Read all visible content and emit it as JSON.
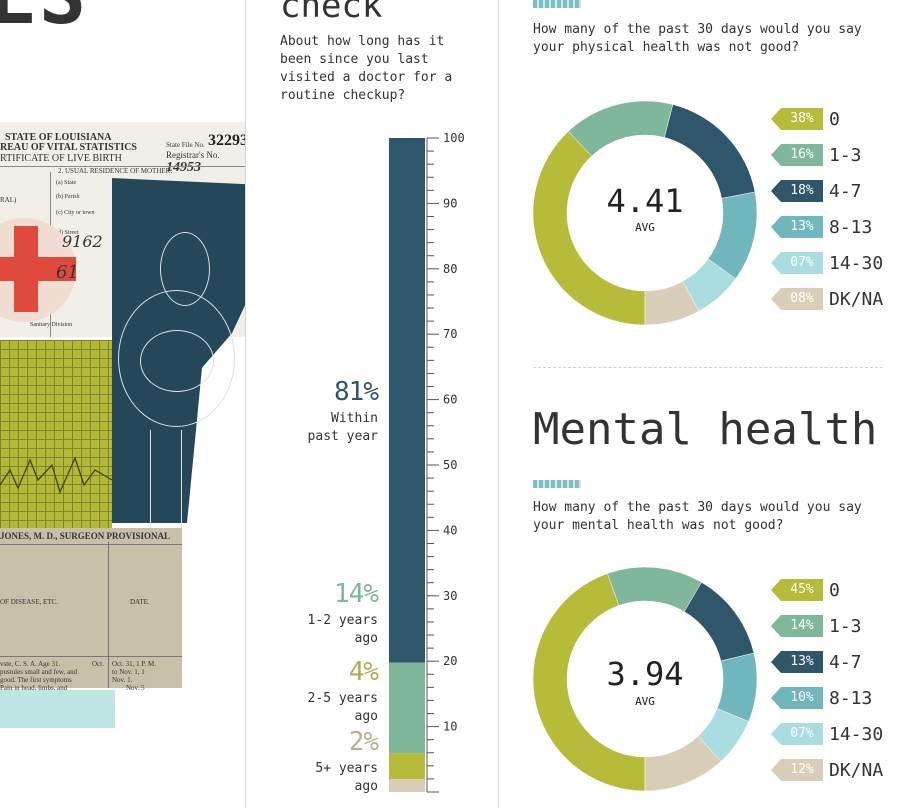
{
  "collage": {
    "big_letters": "ES",
    "state_line": "STATE OF LOUISIANA",
    "bureau_line": "REAU OF VITAL STATISTICS",
    "cert_line": "RTIFICATE OF LIVE BIRTH",
    "state_file_label": "State File No.",
    "state_file_no": "32293",
    "registrar_label": "Registrar's No.",
    "registrar_no": "14953",
    "residence_label": "2. USUAL RESIDENCE OF MOTHER:",
    "state_lbl": "(a) State",
    "parish_lbl": "(b) Parish",
    "city_lbl": "(c) City or town",
    "street_lbl": "(d) Street",
    "rural_lbl": "RAL)",
    "sanitary_lbl": "Sanitary Division",
    "hand_1": "9162",
    "hand_2": "61",
    "surgeon_line": "JONES, M. D., SURGEON PROVISIONAL",
    "disease_lbl": "OF DISEASE, ETC.",
    "date_lbl": "DATE.",
    "note_1": "vste, C. S. A. Age 31.",
    "note_2": "pustules small and few, and",
    "note_3": "good. The first symptoms",
    "note_4": "Pain in head, limbs, and",
    "date_1": "Oct.",
    "date_2": "Oct. 31, 1 P. M.",
    "date_3": "to Nov. 1, 1",
    "date_4": "Nov. 1.",
    "date_5": "Nov. 5"
  },
  "checkup": {
    "heading": "check",
    "question": "About how long has it been since you last visited a doctor for a routine checkup?",
    "segments": [
      {
        "pct": "81%",
        "label": "Within past year",
        "value": 81,
        "color": "#2f566b"
      },
      {
        "pct": "14%",
        "label": "1-2 years ago",
        "value": 14,
        "color": "#7fb79a"
      },
      {
        "pct": "4%",
        "label": "2-5 years ago",
        "value": 4,
        "color": "#b6bb3a"
      },
      {
        "pct": "2%",
        "label": "5+ years ago",
        "value": 2,
        "color": "#d9cfb9"
      }
    ],
    "pct_colors": [
      "#2f566b",
      "#7fb79a",
      "#b2ae55",
      "#b9ae93"
    ]
  },
  "physical": {
    "question": "How many of the past 30 days would you say your physical health was not good?",
    "avg_value": "4.41",
    "avg_label": "AVG"
  },
  "mental": {
    "heading": "Mental health",
    "question": "How many of the past 30 days would you say your mental health was not good?",
    "avg_value": "3.94",
    "avg_label": "AVG"
  },
  "chart_data": [
    {
      "type": "bar",
      "stacked": true,
      "orientation": "vertical",
      "question": "About how long has it been since you last visited a doctor for a routine checkup?",
      "categories": [
        "Within past year",
        "1-2 years ago",
        "2-5 years ago",
        "5+ years ago"
      ],
      "values": [
        81,
        14,
        4,
        2
      ],
      "ylim": [
        0,
        100
      ],
      "yticks": [
        10,
        20,
        30,
        40,
        50,
        60,
        70,
        80,
        90,
        100
      ],
      "colors": [
        "#2f566b",
        "#7fb79a",
        "#b6bb3a",
        "#d9cfb9"
      ]
    },
    {
      "type": "pie",
      "donut": true,
      "question": "How many of the past 30 days would you say your physical health was not good?",
      "center_value": "4.41",
      "center_label": "AVG",
      "categories": [
        "0",
        "1-3",
        "4-7",
        "8-13",
        "14-30",
        "DK/NA"
      ],
      "labels": [
        "38%",
        "16%",
        "18%",
        "13%",
        "07%",
        "08%"
      ],
      "values": [
        38,
        16,
        18,
        13,
        7,
        8
      ],
      "colors": [
        "#b6bb3a",
        "#7fb79a",
        "#2f566b",
        "#6fb6bd",
        "#a9dde1",
        "#d9cfb9"
      ],
      "legend": "right"
    },
    {
      "type": "pie",
      "donut": true,
      "question": "How many of the past 30 days would you say your mental health was not good?",
      "center_value": "3.94",
      "center_label": "AVG",
      "categories": [
        "0",
        "1-3",
        "4-7",
        "8-13",
        "14-30",
        "DK/NA"
      ],
      "labels": [
        "45%",
        "14%",
        "13%",
        "10%",
        "07%",
        "12%"
      ],
      "values": [
        45,
        14,
        13,
        10,
        7,
        12
      ],
      "colors": [
        "#b6bb3a",
        "#7fb79a",
        "#2f566b",
        "#6fb6bd",
        "#a9dde1",
        "#d9cfb9"
      ],
      "legend": "right"
    }
  ]
}
